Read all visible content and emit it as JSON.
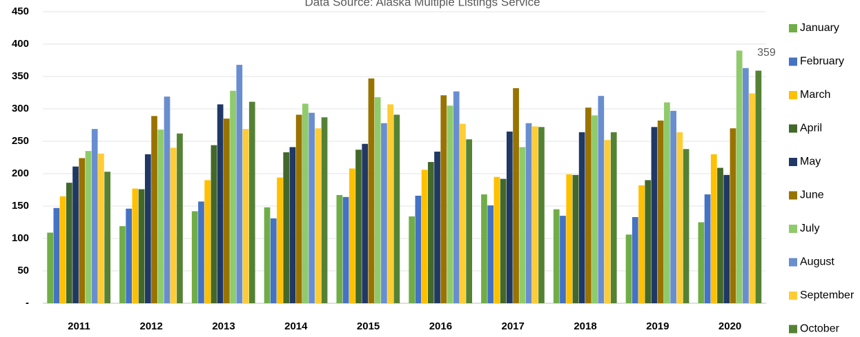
{
  "chart_data": {
    "type": "bar",
    "title": "Data Source: Alaska Multiple Listings Service",
    "categories": [
      "2011",
      "2012",
      "2013",
      "2014",
      "2015",
      "2016",
      "2017",
      "2018",
      "2019",
      "2020"
    ],
    "series": [
      {
        "name": "January",
        "color": "#70ad47",
        "values": [
          109,
          119,
          142,
          148,
          167,
          134,
          168,
          145,
          106,
          125
        ]
      },
      {
        "name": "February",
        "color": "#4472c4",
        "values": [
          147,
          146,
          157,
          131,
          164,
          166,
          151,
          135,
          133,
          168
        ]
      },
      {
        "name": "March",
        "color": "#ffc000",
        "values": [
          165,
          177,
          190,
          194,
          208,
          206,
          195,
          199,
          182,
          230
        ]
      },
      {
        "name": "April",
        "color": "#43682b",
        "values": [
          186,
          176,
          244,
          233,
          237,
          218,
          192,
          198,
          190,
          209
        ]
      },
      {
        "name": "May",
        "color": "#203864",
        "values": [
          211,
          230,
          307,
          241,
          246,
          234,
          265,
          264,
          272,
          198
        ]
      },
      {
        "name": "June",
        "color": "#997300",
        "values": [
          224,
          289,
          285,
          291,
          347,
          321,
          332,
          302,
          282,
          270
        ]
      },
      {
        "name": "July",
        "color": "#8fcb6b",
        "values": [
          235,
          268,
          328,
          308,
          318,
          305,
          241,
          290,
          310,
          390
        ]
      },
      {
        "name": "August",
        "color": "#698ed0",
        "values": [
          269,
          319,
          368,
          294,
          278,
          327,
          278,
          320,
          297,
          363
        ]
      },
      {
        "name": "September",
        "color": "#ffcd33",
        "values": [
          231,
          240,
          269,
          270,
          307,
          277,
          273,
          252,
          264,
          324
        ]
      },
      {
        "name": "October",
        "color": "#548235",
        "values": [
          203,
          262,
          311,
          287,
          291,
          253,
          272,
          264,
          238,
          359
        ],
        "value_labels": [
          null,
          null,
          null,
          null,
          null,
          null,
          null,
          null,
          null,
          "359"
        ]
      }
    ],
    "ylim": [
      0,
      450
    ],
    "yticks": [
      {
        "value": 0,
        "label": "-"
      },
      50,
      100,
      150,
      200,
      250,
      300,
      350,
      400,
      450
    ],
    "grid": true,
    "legend": "right"
  }
}
